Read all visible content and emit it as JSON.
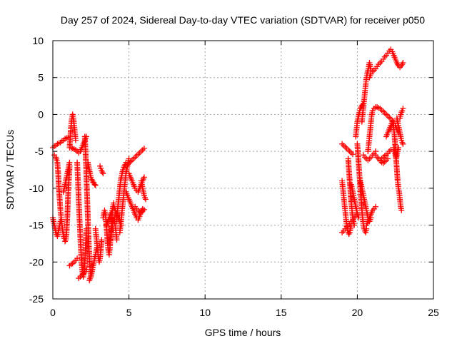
{
  "chart_data": {
    "type": "scatter",
    "title": "Day 257 of 2024, Sidereal Day-to-day VTEC variation (SDTVAR) for receiver p050",
    "xlabel": "GPS time / hours",
    "ylabel": "SDTVAR / TECUs",
    "xlim": [
      0,
      25
    ],
    "ylim": [
      -25,
      10
    ],
    "xticks": [
      0,
      5,
      10,
      15,
      20,
      25
    ],
    "yticks": [
      -25,
      -20,
      -15,
      -10,
      -5,
      0,
      5,
      10
    ],
    "grid": true,
    "marker": "plus",
    "color": "#ff0000",
    "series": [
      {
        "x": [
          0.0,
          0.1,
          0.2,
          0.3,
          0.4,
          0.5
        ],
        "y": [
          -14.0,
          -15.0,
          -16.0,
          -16.5,
          -15.5,
          -14.5
        ]
      },
      {
        "x": [
          0.0,
          0.1,
          0.2,
          0.3,
          0.4,
          0.5,
          0.6,
          0.7,
          0.8,
          0.9,
          1.0
        ],
        "y": [
          -4.5,
          -4.3,
          -4.2,
          -4.0,
          -3.9,
          -3.8,
          -3.6,
          -3.5,
          -3.3,
          -3.2,
          -3.1
        ]
      },
      {
        "x": [
          0.1,
          0.2,
          0.3,
          0.35,
          0.4,
          0.45,
          0.5,
          0.55,
          0.6,
          0.65,
          0.7,
          0.75,
          0.8,
          0.85,
          0.9,
          0.95,
          1.0,
          1.05,
          1.1
        ],
        "y": [
          -5.5,
          -5.8,
          -6.5,
          -8.0,
          -10.0,
          -11.5,
          -13.0,
          -14.0,
          -15.0,
          -15.8,
          -16.3,
          -16.8,
          -17.2,
          -17.0,
          -16.0,
          -14.0,
          -11.0,
          -9.0,
          -7.0
        ]
      },
      {
        "x": [
          0.7,
          0.8,
          0.9,
          1.0,
          1.1
        ],
        "y": [
          -10.5,
          -9.5,
          -8.5,
          -7.5,
          -6.5
        ]
      },
      {
        "x": [
          1.1,
          1.15,
          1.2,
          1.25,
          1.3,
          1.35,
          1.4,
          1.45,
          1.5
        ],
        "y": [
          -4.5,
          -3.0,
          -1.5,
          -0.5,
          0.0,
          -0.5,
          -1.5,
          -2.5,
          -3.5
        ]
      },
      {
        "x": [
          1.2,
          1.3,
          1.4,
          1.5,
          1.6,
          1.7,
          1.8,
          1.9,
          2.0,
          2.1,
          2.2
        ],
        "y": [
          -4.5,
          -4.6,
          -4.7,
          -4.8,
          -5.0,
          -5.2,
          -5.0,
          -4.5,
          -4.0,
          -3.5,
          -3.0
        ]
      },
      {
        "x": [
          1.1,
          1.2,
          1.3,
          1.4,
          1.5,
          1.6
        ],
        "y": [
          -20.5,
          -20.3,
          -20.2,
          -20.0,
          -19.8,
          -19.5
        ]
      },
      {
        "x": [
          1.6,
          1.65,
          1.7,
          1.75,
          1.8,
          1.85,
          1.9,
          1.95,
          2.0,
          2.05,
          2.1,
          2.15,
          2.2
        ],
        "y": [
          -6.5,
          -9.0,
          -11.5,
          -14.0,
          -16.5,
          -18.5,
          -20.5,
          -21.5,
          -22.0,
          -21.5,
          -20.0,
          -18.0,
          -15.5
        ]
      },
      {
        "x": [
          1.7,
          1.8,
          1.9,
          2.0,
          2.1,
          2.2
        ],
        "y": [
          -22.2,
          -22.0,
          -21.8,
          -21.6,
          -21.3,
          -21.0
        ]
      },
      {
        "x": [
          2.1,
          2.15,
          2.2,
          2.25,
          2.3,
          2.35,
          2.4,
          2.45,
          2.5,
          2.55,
          2.6
        ],
        "y": [
          -3.0,
          -5.0,
          -8.0,
          -11.0,
          -14.0,
          -17.0,
          -19.5,
          -21.0,
          -22.0,
          -21.5,
          -20.5
        ]
      },
      {
        "x": [
          2.3,
          2.35,
          2.4,
          2.45,
          2.5,
          2.55,
          2.6,
          2.65,
          2.7,
          2.75,
          2.8
        ],
        "y": [
          -6.5,
          -7.0,
          -7.5,
          -8.0,
          -8.5,
          -8.8,
          -9.0,
          -9.2,
          -9.3,
          -9.5,
          -9.6
        ]
      },
      {
        "x": [
          2.4,
          2.5,
          2.6,
          2.7,
          2.8,
          2.9
        ],
        "y": [
          -22.5,
          -21.8,
          -21.0,
          -20.0,
          -19.0,
          -18.0
        ]
      },
      {
        "x": [
          2.8,
          2.85,
          2.9,
          2.95,
          3.0,
          3.05,
          3.1,
          3.15,
          3.2
        ],
        "y": [
          -15.5,
          -16.5,
          -17.5,
          -18.5,
          -19.5,
          -20.0,
          -19.5,
          -18.5,
          -17.0
        ]
      },
      {
        "x": [
          3.1,
          3.15,
          3.2,
          3.25,
          3.3
        ],
        "y": [
          -7.0,
          -7.3,
          -7.6,
          -7.8,
          -8.0
        ]
      },
      {
        "x": [
          3.3,
          3.35,
          3.4,
          3.45,
          3.5,
          3.55,
          3.6,
          3.65,
          3.7,
          3.75,
          3.8,
          3.85,
          3.9,
          3.95,
          4.0
        ],
        "y": [
          -14.0,
          -13.5,
          -13.0,
          -13.5,
          -14.5,
          -16.0,
          -17.5,
          -18.5,
          -19.0,
          -18.0,
          -16.5,
          -15.0,
          -13.5,
          -12.5,
          -12.0
        ]
      },
      {
        "x": [
          3.5,
          3.6,
          3.7,
          3.8,
          3.9,
          4.0,
          4.1,
          4.2,
          4.3,
          4.4,
          4.5
        ],
        "y": [
          -15.0,
          -14.5,
          -14.0,
          -13.5,
          -13.0,
          -12.5,
          -13.0,
          -13.5,
          -14.0,
          -14.5,
          -15.0
        ]
      },
      {
        "x": [
          3.8,
          3.85,
          3.9,
          3.95,
          4.0,
          4.05,
          4.1,
          4.15,
          4.2
        ],
        "y": [
          -17.0,
          -16.0,
          -15.0,
          -14.5,
          -14.0,
          -14.5,
          -15.0,
          -16.0,
          -17.0
        ]
      },
      {
        "x": [
          4.2,
          4.25,
          4.3,
          4.35,
          4.4,
          4.45,
          4.5,
          4.55,
          4.6,
          4.65,
          4.7,
          4.75,
          4.8
        ],
        "y": [
          -14.5,
          -13.0,
          -12.0,
          -11.0,
          -10.0,
          -9.0,
          -8.5,
          -8.0,
          -7.5,
          -7.2,
          -7.0,
          -6.8,
          -6.5
        ]
      },
      {
        "x": [
          4.4,
          4.45,
          4.5,
          4.55,
          4.6,
          4.65,
          4.7,
          4.75,
          4.8,
          4.85,
          4.9,
          4.95,
          5.0
        ],
        "y": [
          -16.0,
          -15.0,
          -14.0,
          -13.0,
          -12.0,
          -11.0,
          -10.0,
          -9.0,
          -8.0,
          -7.5,
          -7.0,
          -6.5,
          -6.0
        ]
      },
      {
        "x": [
          4.8,
          4.9,
          5.0,
          5.1,
          5.2,
          5.3,
          5.4,
          5.5,
          5.6,
          5.7,
          5.8,
          5.9,
          6.0
        ],
        "y": [
          -7.0,
          -6.8,
          -6.6,
          -6.4,
          -6.2,
          -6.0,
          -5.8,
          -5.6,
          -5.4,
          -5.2,
          -5.0,
          -4.8,
          -4.6
        ]
      },
      {
        "x": [
          4.8,
          4.9,
          5.0,
          5.1,
          5.2,
          5.3,
          5.4,
          5.5,
          5.6,
          5.7,
          5.8,
          5.9
        ],
        "y": [
          -10.5,
          -11.0,
          -11.5,
          -12.0,
          -12.5,
          -13.0,
          -13.5,
          -14.0,
          -14.3,
          -13.8,
          -13.2,
          -12.8
        ]
      },
      {
        "x": [
          5.0,
          5.1,
          5.2,
          5.3,
          5.4,
          5.5,
          5.6,
          5.7,
          5.8,
          5.9,
          6.0
        ],
        "y": [
          -8.0,
          -8.5,
          -9.0,
          -9.5,
          -10.0,
          -10.3,
          -10.5,
          -10.0,
          -9.5,
          -9.0,
          -8.5
        ]
      },
      {
        "x": [
          5.4,
          5.5,
          5.6,
          5.7,
          5.8,
          5.9,
          6.0
        ],
        "y": [
          -12.5,
          -12.8,
          -13.0,
          -13.2,
          -13.3,
          -13.1,
          -12.9
        ]
      },
      {
        "x": [
          5.8,
          5.85,
          5.9,
          5.95,
          6.0,
          6.05,
          6.1
        ],
        "y": [
          -9.0,
          -9.5,
          -10.0,
          -10.5,
          -11.0,
          -11.3,
          -11.5
        ]
      },
      {
        "x": [
          19.0,
          19.1,
          19.2,
          19.3,
          19.4,
          19.5,
          19.6,
          19.7
        ],
        "y": [
          -4.0,
          -4.2,
          -4.4,
          -4.6,
          -4.8,
          -5.0,
          -5.2,
          -5.4
        ]
      },
      {
        "x": [
          19.0,
          19.05,
          19.1,
          19.15,
          19.2,
          19.25,
          19.3,
          19.35,
          19.4,
          19.45,
          19.5,
          19.55,
          19.6
        ],
        "y": [
          -9.0,
          -10.0,
          -11.0,
          -12.0,
          -13.0,
          -14.0,
          -15.0,
          -15.5,
          -16.0,
          -16.2,
          -16.0,
          -15.5,
          -15.0
        ]
      },
      {
        "x": [
          19.0,
          19.1,
          19.2,
          19.3,
          19.4,
          19.5,
          19.6,
          19.7,
          19.8,
          19.9,
          20.0
        ],
        "y": [
          -16.0,
          -15.8,
          -15.5,
          -15.2,
          -15.0,
          -14.8,
          -14.5,
          -14.3,
          -14.0,
          -13.8,
          -13.5
        ]
      },
      {
        "x": [
          19.4,
          19.45,
          19.5,
          19.55,
          19.6,
          19.65,
          19.7,
          19.75,
          19.8
        ],
        "y": [
          -6.0,
          -7.5,
          -9.0,
          -10.5,
          -12.0,
          -13.0,
          -14.0,
          -14.5,
          -15.0
        ]
      },
      {
        "x": [
          19.6,
          19.7,
          19.8,
          19.9,
          20.0,
          20.1
        ],
        "y": [
          -9.5,
          -10.5,
          -11.5,
          -12.5,
          -13.5,
          -14.0
        ]
      },
      {
        "x": [
          19.9,
          19.95,
          20.0,
          20.05,
          20.1,
          20.15,
          20.2,
          20.25,
          20.3,
          20.35,
          20.4
        ],
        "y": [
          -3.0,
          -2.0,
          -1.0,
          -0.5,
          0.0,
          0.5,
          0.8,
          1.0,
          1.2,
          1.3,
          1.5
        ]
      },
      {
        "x": [
          20.0,
          20.05,
          20.1,
          20.15,
          20.2,
          20.25,
          20.3,
          20.35,
          20.4,
          20.45,
          20.5,
          20.55,
          20.6
        ],
        "y": [
          -4.0,
          -5.5,
          -7.0,
          -8.5,
          -10.0,
          -11.5,
          -13.0,
          -14.0,
          -15.0,
          -15.5,
          -15.8,
          -16.0,
          -15.5
        ]
      },
      {
        "x": [
          20.2,
          20.3,
          20.4,
          20.5,
          20.6,
          20.7,
          20.8,
          20.9
        ],
        "y": [
          -9.0,
          -10.0,
          -11.0,
          -12.0,
          -13.0,
          -14.0,
          -14.5,
          -14.0
        ]
      },
      {
        "x": [
          20.3,
          20.35,
          20.4,
          20.45,
          20.5,
          20.55,
          20.6,
          20.65,
          20.7,
          20.75,
          20.8,
          20.85,
          20.9
        ],
        "y": [
          -1.0,
          0.0,
          1.0,
          2.0,
          3.0,
          4.0,
          5.0,
          5.5,
          6.0,
          6.5,
          7.0,
          6.5,
          6.0
        ]
      },
      {
        "x": [
          20.4,
          20.5,
          20.6,
          20.7,
          20.8,
          20.9,
          21.0,
          21.1,
          21.2
        ],
        "y": [
          -5.5,
          -5.8,
          -6.0,
          -6.2,
          -6.0,
          -5.8,
          -5.5,
          -5.3,
          -5.0
        ]
      },
      {
        "x": [
          20.6,
          20.7,
          20.8,
          20.9,
          21.0,
          21.1,
          21.2
        ],
        "y": [
          -15.0,
          -14.5,
          -14.0,
          -13.5,
          -13.0,
          -12.8,
          -12.5
        ]
      },
      {
        "x": [
          20.7,
          20.75,
          20.8,
          20.85,
          20.9,
          20.95,
          21.0
        ],
        "y": [
          -5.0,
          -4.0,
          -3.0,
          -2.0,
          -1.0,
          0.0,
          0.5
        ]
      },
      {
        "x": [
          20.8,
          20.9,
          21.0,
          21.1,
          21.2,
          21.3,
          21.4,
          21.5,
          21.6,
          21.7,
          21.8,
          21.9,
          22.0,
          22.1,
          22.2,
          22.3,
          22.4,
          22.5,
          22.6,
          22.7,
          22.8,
          22.9,
          23.0
        ],
        "y": [
          5.0,
          5.5,
          5.8,
          6.0,
          6.2,
          6.5,
          6.8,
          7.0,
          7.2,
          7.5,
          7.8,
          8.0,
          8.3,
          8.6,
          8.8,
          8.5,
          8.0,
          7.5,
          7.0,
          6.6,
          6.4,
          6.6,
          7.0
        ]
      },
      {
        "x": [
          21.0,
          21.1,
          21.2,
          21.3,
          21.4,
          21.5,
          21.6,
          21.7,
          21.8,
          21.9,
          22.0,
          22.1,
          22.2,
          22.3,
          22.4
        ],
        "y": [
          0.5,
          0.8,
          1.0,
          1.0,
          0.9,
          0.8,
          0.6,
          0.4,
          0.2,
          0.0,
          -0.2,
          -0.4,
          -0.6,
          -0.8,
          -1.0
        ]
      },
      {
        "x": [
          21.2,
          21.3,
          21.4,
          21.5,
          21.6,
          21.7,
          21.8,
          21.9,
          22.0,
          22.1,
          22.2
        ],
        "y": [
          -5.5,
          -5.8,
          -6.0,
          -6.2,
          -6.0,
          -5.8,
          -5.6,
          -5.5,
          -5.3,
          -5.0,
          -4.8
        ]
      },
      {
        "x": [
          21.5,
          21.6,
          21.7,
          21.8,
          21.9,
          22.0
        ],
        "y": [
          -6.3,
          -6.5,
          -6.6,
          -6.4,
          -6.2,
          -6.0
        ]
      },
      {
        "x": [
          21.9,
          22.0,
          22.1,
          22.2,
          22.3,
          22.4,
          22.5,
          22.6,
          22.7
        ],
        "y": [
          -3.0,
          -2.5,
          -2.0,
          -1.5,
          -1.0,
          -1.2,
          -1.5,
          -2.0,
          -2.5
        ]
      },
      {
        "x": [
          22.2,
          22.25,
          22.3,
          22.35,
          22.4,
          22.45,
          22.5,
          22.55,
          22.6,
          22.65,
          22.7,
          22.75,
          22.8,
          22.85,
          22.9
        ],
        "y": [
          -2.0,
          -1.5,
          -1.0,
          -1.5,
          -2.0,
          -3.0,
          -4.5,
          -6.0,
          -7.5,
          -9.0,
          -10.0,
          -10.5,
          -11.5,
          -12.5,
          -13.0
        ]
      },
      {
        "x": [
          22.4,
          22.45,
          22.5,
          22.55,
          22.6,
          22.65,
          22.7
        ],
        "y": [
          -4.5,
          -5.0,
          -5.5,
          -6.0,
          -5.5,
          -5.0,
          -4.5
        ]
      },
      {
        "x": [
          22.6,
          22.65,
          22.7,
          22.75,
          22.8,
          22.85,
          22.9,
          22.95,
          23.0
        ],
        "y": [
          -0.5,
          -1.0,
          -1.5,
          -2.0,
          -2.5,
          -3.0,
          -3.5,
          -3.8,
          -4.0
        ]
      },
      {
        "x": [
          22.8,
          22.85,
          22.9,
          22.95,
          23.0
        ],
        "y": [
          -0.5,
          0.0,
          0.3,
          0.5,
          0.8
        ]
      }
    ]
  }
}
